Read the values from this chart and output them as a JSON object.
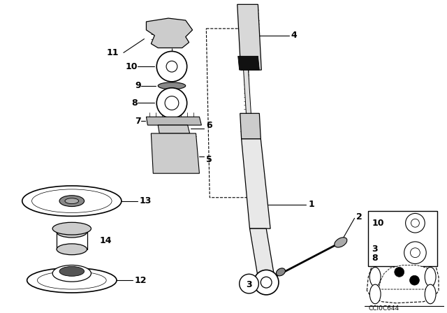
{
  "bg_color": "#ffffff",
  "fig_width": 6.4,
  "fig_height": 4.48,
  "dpi": 100,
  "line_color": "#000000"
}
